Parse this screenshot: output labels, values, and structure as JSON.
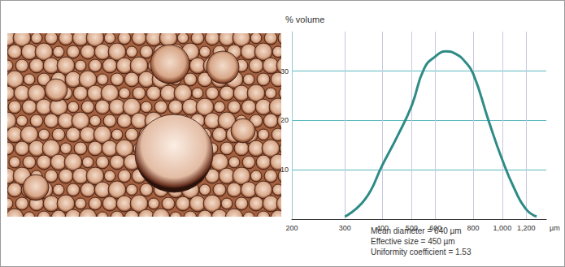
{
  "chart_data": {
    "type": "line",
    "y_label": "% volume",
    "x_label": "µm",
    "x": [
      300,
      350,
      400,
      450,
      500,
      550,
      600,
      650,
      700,
      750,
      800,
      900,
      1000,
      1100,
      1200,
      1300
    ],
    "values": [
      0.5,
      4,
      11,
      17,
      23,
      30.5,
      33,
      34,
      33.5,
      32,
      29.5,
      20,
      12,
      6,
      2,
      0.5
    ],
    "color": "#2e8b86",
    "line_style": "solid",
    "marker": "none",
    "log": "x",
    "xlim": [
      200,
      1400
    ],
    "ylim": [
      0,
      38
    ],
    "xticks": [
      200,
      300,
      400,
      500,
      600,
      800,
      1000,
      1200
    ],
    "yticks": [
      10,
      20,
      30
    ],
    "grid": true,
    "annotations": [
      "Mean diameter = 640 µm",
      "Effective size = 450 µm",
      "Uniformity coefficient = 1.53"
    ]
  }
}
